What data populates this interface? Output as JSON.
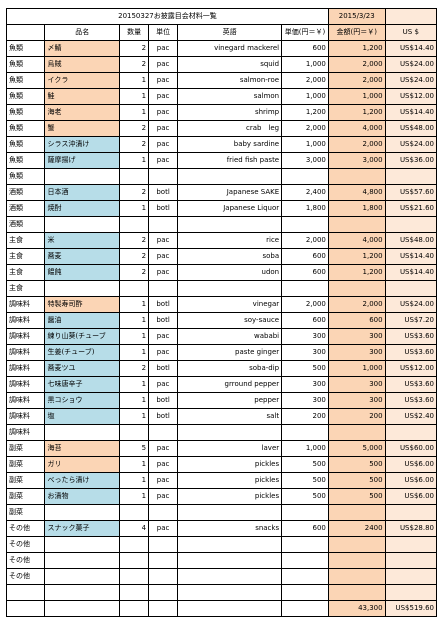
{
  "title": "20150327お披露目会材料一覧",
  "date": "2015/3/23",
  "headers": {
    "name": "品名",
    "qty": "数量",
    "unit": "単位",
    "english": "英語",
    "price": "単価(円＝￥)",
    "amount": "金額(円＝￥)",
    "usd": "US $"
  },
  "rows": [
    {
      "cat": "魚類",
      "name": "〆鯖",
      "qty": "2",
      "unit": "pac",
      "en": "vinegard mackerel",
      "price": "600",
      "amt": "1,200",
      "usd": "US$14.40",
      "hl": "orange"
    },
    {
      "cat": "魚類",
      "name": "烏賊",
      "qty": "2",
      "unit": "pac",
      "en": "squid",
      "price": "1,000",
      "amt": "2,000",
      "usd": "US$24.00",
      "hl": "orange"
    },
    {
      "cat": "魚類",
      "name": "イクラ",
      "qty": "1",
      "unit": "pac",
      "en": "salmon-roe",
      "price": "2,000",
      "amt": "2,000",
      "usd": "US$24.00",
      "hl": "orange"
    },
    {
      "cat": "魚類",
      "name": "鮭",
      "qty": "1",
      "unit": "pac",
      "en": "salmon",
      "price": "1,000",
      "amt": "1,000",
      "usd": "US$12.00",
      "hl": "orange"
    },
    {
      "cat": "魚類",
      "name": "海老",
      "qty": "1",
      "unit": "pac",
      "en": "shrimp",
      "price": "1,200",
      "amt": "1,200",
      "usd": "US$14.40",
      "hl": "orange"
    },
    {
      "cat": "魚類",
      "name": "蟹",
      "qty": "2",
      "unit": "pac",
      "en": "crab　leg",
      "price": "2,000",
      "amt": "4,000",
      "usd": "US$48.00",
      "hl": "orange"
    },
    {
      "cat": "魚類",
      "name": "シラス沖漬け",
      "qty": "2",
      "unit": "pac",
      "en": "baby sardine",
      "price": "1,000",
      "amt": "2,000",
      "usd": "US$24.00",
      "hl": "blue"
    },
    {
      "cat": "魚類",
      "name": "薩摩揚げ",
      "qty": "1",
      "unit": "pac",
      "en": "fried fish paste",
      "price": "3,000",
      "amt": "3,000",
      "usd": "US$36.00",
      "hl": "blue"
    },
    {
      "cat": "魚類",
      "name": "",
      "qty": "",
      "unit": "",
      "en": "",
      "price": "",
      "amt": "",
      "usd": "",
      "hl": ""
    },
    {
      "cat": "酒類",
      "name": "日本酒",
      "qty": "2",
      "unit": "botl",
      "en": "Japanese SAKE",
      "price": "2,400",
      "amt": "4,800",
      "usd": "US$57.60",
      "hl": "blue"
    },
    {
      "cat": "酒類",
      "name": "焼酎",
      "qty": "1",
      "unit": "botl",
      "en": "Japanese Liquor",
      "price": "1,800",
      "amt": "1,800",
      "usd": "US$21.60",
      "hl": "blue"
    },
    {
      "cat": "酒類",
      "name": "",
      "qty": "",
      "unit": "",
      "en": "",
      "price": "",
      "amt": "",
      "usd": "",
      "hl": ""
    },
    {
      "cat": "主食",
      "name": "米",
      "qty": "2",
      "unit": "pac",
      "en": "rice",
      "price": "2,000",
      "amt": "4,000",
      "usd": "US$48.00",
      "hl": "blue"
    },
    {
      "cat": "主食",
      "name": "蕎麦",
      "qty": "2",
      "unit": "pac",
      "en": "soba",
      "price": "600",
      "amt": "1,200",
      "usd": "US$14.40",
      "hl": "blue"
    },
    {
      "cat": "主食",
      "name": "饂飩",
      "qty": "2",
      "unit": "pac",
      "en": "udon",
      "price": "600",
      "amt": "1,200",
      "usd": "US$14.40",
      "hl": "blue"
    },
    {
      "cat": "主食",
      "name": "",
      "qty": "",
      "unit": "",
      "en": "",
      "price": "",
      "amt": "",
      "usd": "",
      "hl": ""
    },
    {
      "cat": "調味料",
      "name": "特製寿司酢",
      "qty": "1",
      "unit": "botl",
      "en": "vinegar",
      "price": "2,000",
      "amt": "2,000",
      "usd": "US$24.00",
      "hl": "orange"
    },
    {
      "cat": "調味料",
      "name": "醤油",
      "qty": "1",
      "unit": "botl",
      "en": "soy-sauce",
      "price": "600",
      "amt": "600",
      "usd": "US$7.20",
      "hl": "blue"
    },
    {
      "cat": "調味料",
      "name": "練り山葵(チューブ",
      "qty": "1",
      "unit": "pac",
      "en": "wababi",
      "price": "300",
      "amt": "300",
      "usd": "US$3.60",
      "hl": "blue"
    },
    {
      "cat": "調味料",
      "name": "生姜(チューブ)",
      "qty": "1",
      "unit": "pac",
      "en": "paste ginger",
      "price": "300",
      "amt": "300",
      "usd": "US$3.60",
      "hl": "blue"
    },
    {
      "cat": "調味料",
      "name": "蕎麦ツユ",
      "qty": "2",
      "unit": "botl",
      "en": "soba-dip",
      "price": "500",
      "amt": "1,000",
      "usd": "US$12.00",
      "hl": "blue"
    },
    {
      "cat": "調味料",
      "name": "七味唐辛子",
      "qty": "1",
      "unit": "pac",
      "en": "grround pepper",
      "price": "300",
      "amt": "300",
      "usd": "US$3.60",
      "hl": "blue"
    },
    {
      "cat": "調味料",
      "name": "黒コショウ",
      "qty": "1",
      "unit": "botl",
      "en": "pepper",
      "price": "300",
      "amt": "300",
      "usd": "US$3.60",
      "hl": "blue"
    },
    {
      "cat": "調味料",
      "name": "塩",
      "qty": "1",
      "unit": "botl",
      "en": "salt",
      "price": "200",
      "amt": "200",
      "usd": "US$2.40",
      "hl": "blue"
    },
    {
      "cat": "調味料",
      "name": "",
      "qty": "",
      "unit": "",
      "en": "",
      "price": "",
      "amt": "",
      "usd": "",
      "hl": ""
    },
    {
      "cat": "副菜",
      "name": "海苔",
      "qty": "5",
      "unit": "pac",
      "en": "laver",
      "price": "1,000",
      "amt": "5,000",
      "usd": "US$60.00",
      "hl": "orange"
    },
    {
      "cat": "副菜",
      "name": "ガリ",
      "qty": "1",
      "unit": "pac",
      "en": "pickles",
      "price": "500",
      "amt": "500",
      "usd": "US$6.00",
      "hl": "orange"
    },
    {
      "cat": "副菜",
      "name": "べったら漬け",
      "qty": "1",
      "unit": "pac",
      "en": "pickles",
      "price": "500",
      "amt": "500",
      "usd": "US$6.00",
      "hl": "blue"
    },
    {
      "cat": "副菜",
      "name": "お漬物",
      "qty": "1",
      "unit": "pac",
      "en": "pickles",
      "price": "500",
      "amt": "500",
      "usd": "US$6.00",
      "hl": "blue"
    },
    {
      "cat": "副菜",
      "name": "",
      "qty": "",
      "unit": "",
      "en": "",
      "price": "",
      "amt": "",
      "usd": "",
      "hl": ""
    },
    {
      "cat": "その他",
      "name": "スナック菓子",
      "qty": "4",
      "unit": "pac",
      "en": "snacks",
      "price": "600",
      "amt": "2400",
      "usd": "US$28.80",
      "hl": "blue"
    },
    {
      "cat": "その他",
      "name": "",
      "qty": "",
      "unit": "",
      "en": "",
      "price": "",
      "amt": "",
      "usd": "",
      "hl": ""
    },
    {
      "cat": "その他",
      "name": "",
      "qty": "",
      "unit": "",
      "en": "",
      "price": "",
      "amt": "",
      "usd": "",
      "hl": ""
    },
    {
      "cat": "その他",
      "name": "",
      "qty": "",
      "unit": "",
      "en": "",
      "price": "",
      "amt": "",
      "usd": "",
      "hl": ""
    },
    {
      "cat": "",
      "name": "",
      "qty": "",
      "unit": "",
      "en": "",
      "price": "",
      "amt": "",
      "usd": "",
      "hl": ""
    }
  ],
  "totals": {
    "amount": "43,300",
    "usd": "US$519.60"
  },
  "colors": {
    "orange": "#fbd5b5",
    "blue": "#b7dde8",
    "usd_column": "#fde9d9"
  }
}
